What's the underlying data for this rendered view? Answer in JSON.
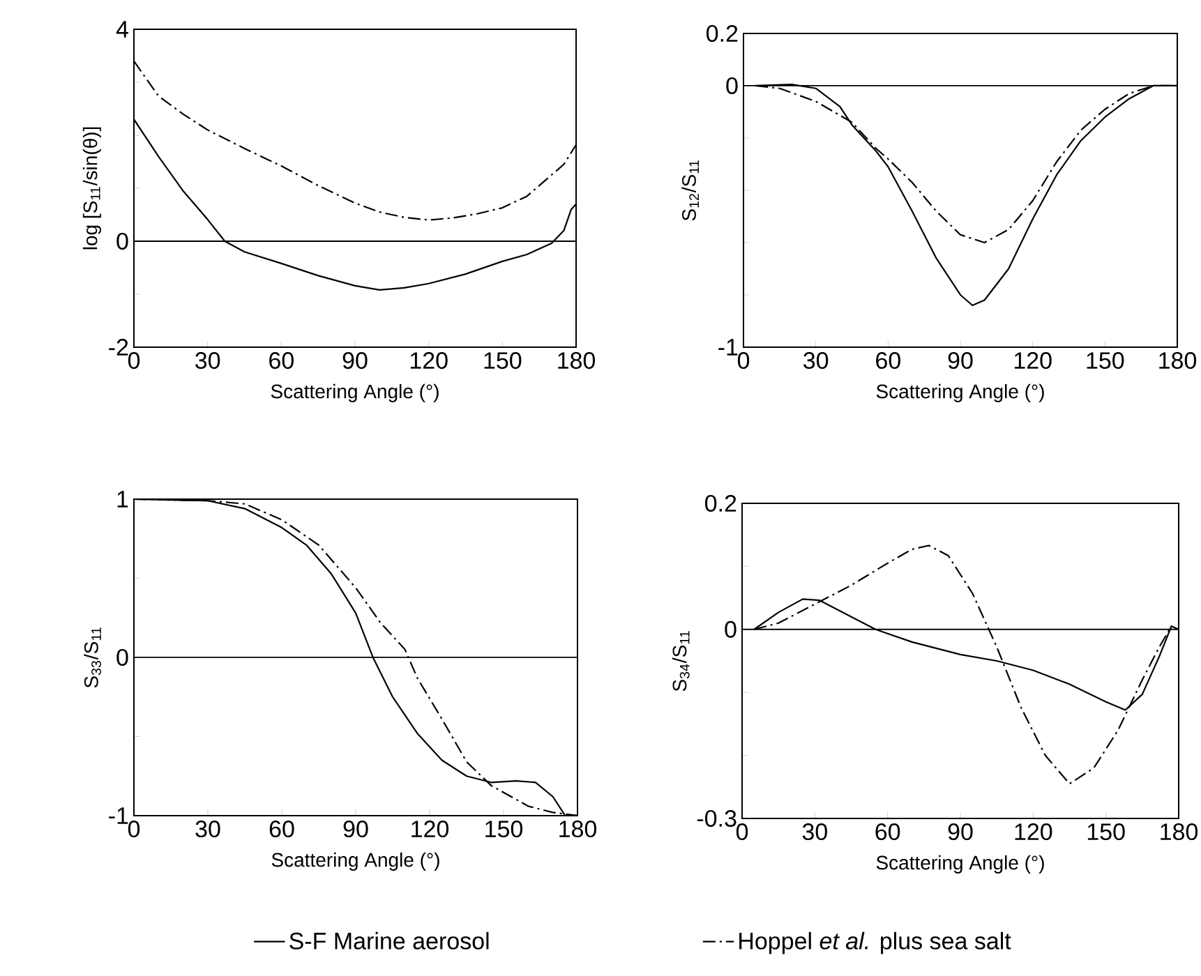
{
  "chart_data": [
    {
      "type": "line",
      "xlabel": "Scattering Angle (°)",
      "ylabel": "log [S$_{11}$/sin(θ)]",
      "xlim": [
        0,
        180
      ],
      "ylim": [
        -2,
        4
      ],
      "xticks": [
        0,
        30,
        60,
        90,
        120,
        150,
        180
      ],
      "yticks": [
        -2,
        {
          "value": -1,
          "label": null
        },
        0,
        {
          "value": 1,
          "label": null
        },
        {
          "value": 2,
          "label": null
        },
        {
          "value": 3,
          "label": null
        },
        4
      ],
      "ref_lines": [
        {
          "axis": "y",
          "value": 0
        }
      ],
      "legend": "bottom",
      "series": [
        {
          "name": "S-F Marine aerosol",
          "color": "#000000",
          "line_style": "solid",
          "x": [
            0,
            10,
            20,
            30,
            37,
            45,
            60,
            75,
            90,
            100,
            110,
            120,
            135,
            150,
            160,
            170,
            175,
            178,
            180
          ],
          "values": [
            2.3,
            1.6,
            0.95,
            0.41,
            0,
            -0.2,
            -0.42,
            -0.65,
            -0.84,
            -0.92,
            -0.88,
            -0.8,
            -0.62,
            -0.38,
            -0.25,
            -0.04,
            0.2,
            0.6,
            0.7
          ]
        },
        {
          "name": "Hoppel *et al.* plus sea salt",
          "color": "#000000",
          "line_style": "dashdot",
          "x": [
            0,
            3,
            10,
            20,
            30,
            45,
            60,
            75,
            90,
            100,
            110,
            120,
            130,
            140,
            150,
            160,
            170,
            175,
            180
          ],
          "values": [
            3.4,
            3.2,
            2.74,
            2.4,
            2.1,
            1.75,
            1.42,
            1.05,
            0.72,
            0.55,
            0.45,
            0.4,
            0.44,
            0.52,
            0.63,
            0.85,
            1.25,
            1.45,
            1.82
          ]
        }
      ]
    },
    {
      "type": "line",
      "xlabel": "Scattering Angle (°)",
      "ylabel": "S$_{12}$/S$_{11}$",
      "xlim": [
        0,
        180
      ],
      "ylim": [
        -1,
        0.2
      ],
      "xticks": [
        0,
        30,
        60,
        90,
        120,
        150,
        180
      ],
      "yticks": [
        -1,
        {
          "value": -0.8,
          "label": null
        },
        {
          "value": -0.6,
          "label": null
        },
        {
          "value": -0.4,
          "label": null
        },
        {
          "value": -0.2,
          "label": null
        },
        0,
        0.2
      ],
      "ref_lines": [
        {
          "axis": "y",
          "value": 0
        }
      ],
      "series": [
        {
          "color": "#000000",
          "line_style": "solid",
          "x": [
            5,
            20,
            30,
            40,
            45,
            55,
            60,
            70,
            80,
            90,
            95,
            100,
            110,
            120,
            130,
            140,
            150,
            160,
            170,
            180
          ],
          "values": [
            0,
            0.005,
            -0.01,
            -0.08,
            -0.15,
            -0.25,
            -0.31,
            -0.48,
            -0.66,
            -0.8,
            -0.84,
            -0.82,
            -0.7,
            -0.51,
            -0.34,
            -0.21,
            -0.12,
            -0.05,
            0,
            0
          ]
        },
        {
          "color": "#000000",
          "line_style": "dashdot",
          "x": [
            5,
            15,
            30,
            45,
            55,
            60,
            70,
            80,
            90,
            100,
            110,
            120,
            130,
            140,
            150,
            160,
            170,
            180
          ],
          "values": [
            0,
            -0.01,
            -0.06,
            -0.14,
            -0.24,
            -0.28,
            -0.37,
            -0.48,
            -0.57,
            -0.6,
            -0.55,
            -0.44,
            -0.29,
            -0.17,
            -0.09,
            -0.03,
            0,
            0
          ]
        }
      ]
    },
    {
      "type": "line",
      "xlabel": "Scattering Angle (°)",
      "ylabel": "S$_{33}$/S$_{11}$",
      "xlim": [
        0,
        180
      ],
      "ylim": [
        -1,
        1
      ],
      "xticks": [
        0,
        30,
        60,
        90,
        120,
        150,
        180
      ],
      "yticks": [
        -1,
        {
          "value": -0.5,
          "label": null
        },
        0,
        {
          "value": 0.5,
          "label": null
        },
        1
      ],
      "ref_lines": [
        {
          "axis": "y",
          "value": 0
        }
      ],
      "series": [
        {
          "color": "#000000",
          "line_style": "solid",
          "x": [
            0,
            30,
            45,
            60,
            70,
            80,
            90,
            97,
            105,
            115,
            125,
            135,
            145,
            155,
            163,
            170,
            175
          ],
          "values": [
            1,
            0.99,
            0.94,
            0.82,
            0.71,
            0.53,
            0.28,
            0,
            -0.25,
            -0.48,
            -0.65,
            -0.75,
            -0.79,
            -0.78,
            -0.79,
            -0.88,
            -1
          ]
        },
        {
          "color": "#000000",
          "line_style": "dashdot",
          "x": [
            0,
            30,
            45,
            60,
            75,
            90,
            100,
            110,
            115,
            125,
            135,
            145,
            160,
            170,
            180
          ],
          "values": [
            1,
            0.99,
            0.97,
            0.87,
            0.71,
            0.44,
            0.22,
            0.05,
            -0.13,
            -0.39,
            -0.66,
            -0.81,
            -0.94,
            -0.98,
            -1
          ]
        }
      ]
    },
    {
      "type": "line",
      "xlabel": "Scattering Angle (°)",
      "ylabel": "S$_{34}$/S$_{11}$",
      "xlim": [
        0,
        180
      ],
      "ylim": [
        -0.3,
        0.2
      ],
      "xticks": [
        0,
        30,
        60,
        90,
        120,
        150,
        180
      ],
      "yticks": [
        -0.3,
        {
          "value": -0.2,
          "label": null
        },
        {
          "value": -0.1,
          "label": null
        },
        0,
        {
          "value": 0.1,
          "label": null
        },
        0.2
      ],
      "ref_lines": [
        {
          "axis": "y",
          "value": 0
        }
      ],
      "series": [
        {
          "color": "#000000",
          "line_style": "solid",
          "x": [
            5,
            15,
            25,
            32,
            45,
            55,
            70,
            90,
            105,
            120,
            135,
            150,
            158,
            165,
            172,
            177,
            180
          ],
          "values": [
            0,
            0.027,
            0.048,
            0.046,
            0.02,
            0,
            -0.02,
            -0.04,
            -0.05,
            -0.065,
            -0.087,
            -0.115,
            -0.128,
            -0.103,
            -0.043,
            0.005,
            0
          ]
        },
        {
          "color": "#000000",
          "line_style": "dashdot",
          "x": [
            5,
            15,
            30,
            45,
            60,
            70,
            77,
            85,
            95,
            105,
            115,
            125,
            135,
            145,
            155,
            165,
            172,
            177
          ],
          "values": [
            0,
            0.01,
            0.04,
            0.07,
            0.105,
            0.127,
            0.133,
            0.117,
            0.057,
            -0.028,
            -0.124,
            -0.2,
            -0.245,
            -0.22,
            -0.16,
            -0.08,
            -0.028,
            0.005
          ]
        }
      ]
    }
  ]
}
